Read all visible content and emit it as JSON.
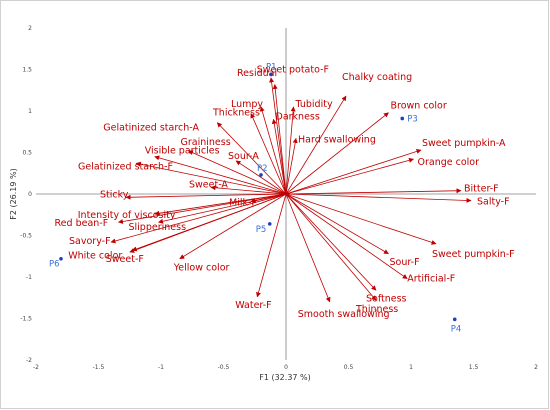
{
  "chart_data": {
    "type": "scatter",
    "title": "",
    "xlabel": "F1 (32.37 %)",
    "ylabel": "F2 (26.19 %)",
    "xlim": [
      -2,
      2
    ],
    "ylim": [
      -2,
      2
    ],
    "x_ticks": [
      "-2",
      "-1.5",
      "-1",
      "-0.5",
      "0",
      "0.5",
      "1",
      "1.5",
      "2"
    ],
    "y_ticks": [
      "-2",
      "-1.5",
      "-1",
      "-0.5",
      "0",
      "0.5",
      "1",
      "1.5",
      "2"
    ],
    "colors": {
      "variables": "#c00000",
      "observations": "#1f3fbf",
      "observation_labels": "#3a6fd8",
      "axes": "#808080"
    },
    "variables": [
      {
        "name": "Residual",
        "x": -0.12,
        "y": 1.4
      },
      {
        "name": "Sweet potato-F",
        "x": -0.09,
        "y": 1.32
      },
      {
        "name": "Chalky coating",
        "x": 0.48,
        "y": 1.18
      },
      {
        "name": "Lumpy",
        "x": -0.2,
        "y": 1.05
      },
      {
        "name": "Tubidity",
        "x": 0.06,
        "y": 1.05
      },
      {
        "name": "Brown color",
        "x": 0.82,
        "y": 0.98
      },
      {
        "name": "Thickness",
        "x": -0.28,
        "y": 0.97
      },
      {
        "name": "Darkness",
        "x": -0.1,
        "y": 0.9
      },
      {
        "name": "Gelatinized starch-A",
        "x": -0.55,
        "y": 0.86
      },
      {
        "name": "Hard swallowing",
        "x": 0.08,
        "y": 0.67
      },
      {
        "name": "Graininess",
        "x": -0.78,
        "y": 0.52
      },
      {
        "name": "Visible particles",
        "x": -1.05,
        "y": 0.45
      },
      {
        "name": "Sour-A",
        "x": -0.4,
        "y": 0.4
      },
      {
        "name": "Sweet pumpkin-A",
        "x": 1.08,
        "y": 0.53
      },
      {
        "name": "Orange color",
        "x": 1.02,
        "y": 0.42
      },
      {
        "name": "Gelatinized starch-F",
        "x": -1.2,
        "y": 0.37
      },
      {
        "name": "Sweet-A",
        "x": -0.6,
        "y": 0.08
      },
      {
        "name": "Bitter-F",
        "x": 1.4,
        "y": 0.04
      },
      {
        "name": "Sticky",
        "x": -1.28,
        "y": -0.04
      },
      {
        "name": "Salty-F",
        "x": 1.48,
        "y": -0.08
      },
      {
        "name": "Milk-F",
        "x": -0.28,
        "y": -0.09
      },
      {
        "name": "Intensity of viscosity",
        "x": -1.05,
        "y": -0.24
      },
      {
        "name": "Red bean-F",
        "x": -1.34,
        "y": -0.34
      },
      {
        "name": "Slipperiness",
        "x": -1.02,
        "y": -0.34
      },
      {
        "name": "Savory-F",
        "x": -1.4,
        "y": -0.58
      },
      {
        "name": "Sweet pumpkin-F",
        "x": 1.2,
        "y": -0.6
      },
      {
        "name": "Sweet-F",
        "x": -1.25,
        "y": -0.7
      },
      {
        "name": "White color",
        "x": -1.23,
        "y": -0.68
      },
      {
        "name": "Sour-F",
        "x": 0.82,
        "y": -0.72
      },
      {
        "name": "Yellow color",
        "x": -0.85,
        "y": -0.78
      },
      {
        "name": "Artificial-F",
        "x": 0.97,
        "y": -1.02
      },
      {
        "name": "Softness",
        "x": 0.72,
        "y": -1.16
      },
      {
        "name": "Water-F",
        "x": -0.23,
        "y": -1.24
      },
      {
        "name": "Smooth swallowing",
        "x": 0.35,
        "y": -1.3
      },
      {
        "name": "Thinness",
        "x": 0.72,
        "y": -1.28
      }
    ],
    "observations": [
      {
        "name": "P1",
        "x": -0.12,
        "y": 1.44
      },
      {
        "name": "P2",
        "x": -0.2,
        "y": 0.23
      },
      {
        "name": "P3",
        "x": 0.93,
        "y": 0.91
      },
      {
        "name": "P4",
        "x": 1.35,
        "y": -1.51
      },
      {
        "name": "P5",
        "x": -0.13,
        "y": -0.36
      },
      {
        "name": "P6",
        "x": -1.8,
        "y": -0.78
      }
    ]
  }
}
